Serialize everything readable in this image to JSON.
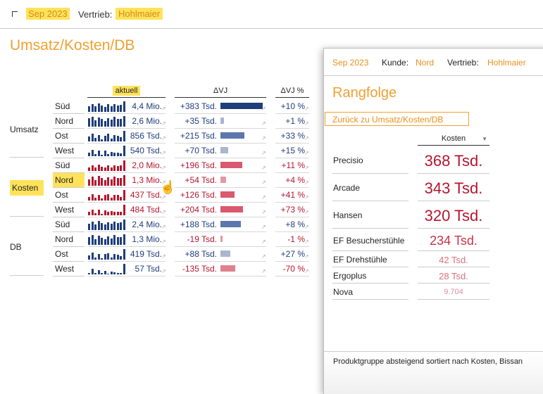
{
  "filters": {
    "date": "Sep 2023",
    "vertrieb_label": "Vertrieb:",
    "vertrieb_value": "Hohlmaier"
  },
  "main_title": "Umsatz/Kosten/DB",
  "columns": {
    "aktuell": "aktuell",
    "dvj": "ΔVJ",
    "dvj_pct": "ΔVJ %"
  },
  "colors": {
    "blue": "#1f3d7a",
    "red": "#b4162e",
    "blue_light": "#a9b6cf",
    "red_light": "#e19aa5",
    "highlight": "#ffe25a",
    "orange": "#f0a032"
  },
  "groups": [
    {
      "label": "Umsatz",
      "rows": [
        {
          "region": "Süd",
          "value": "4,4 Mio.",
          "delta": "+383 Tsd.",
          "delta_num": 383,
          "pct": "+10 %"
        },
        {
          "region": "Nord",
          "value": "2,6 Mio.",
          "delta": "+35 Tsd.",
          "delta_num": 35,
          "pct": "+1 %"
        },
        {
          "region": "Ost",
          "value": "856 Tsd.",
          "delta": "+215 Tsd.",
          "delta_num": 215,
          "pct": "+33 %"
        },
        {
          "region": "West",
          "value": "540 Tsd.",
          "delta": "+70 Tsd.",
          "delta_num": 70,
          "pct": "+15 %"
        }
      ]
    },
    {
      "label": "Kosten",
      "rows": [
        {
          "region": "Süd",
          "value": "2,0 Mio.",
          "delta": "+196 Tsd.",
          "delta_num": 196,
          "pct": "+11 %"
        },
        {
          "region": "Nord",
          "value": "1,3 Mio.",
          "delta": "+54 Tsd.",
          "delta_num": 54,
          "pct": "+4 %"
        },
        {
          "region": "Ost",
          "value": "437 Tsd.",
          "delta": "+126 Tsd.",
          "delta_num": 126,
          "pct": "+41 %"
        },
        {
          "region": "West",
          "value": "484 Tsd.",
          "delta": "+204 Tsd.",
          "delta_num": 204,
          "pct": "+73 %"
        }
      ]
    },
    {
      "label": "DB",
      "rows": [
        {
          "region": "Süd",
          "value": "2,4 Mio.",
          "delta": "+188 Tsd.",
          "delta_num": 188,
          "pct": "+8 %"
        },
        {
          "region": "Nord",
          "value": "1,3 Mio.",
          "delta": "-19 Tsd.",
          "delta_num": -19,
          "pct": "-1 %"
        },
        {
          "region": "Ost",
          "value": "419 Tsd.",
          "delta": "+88 Tsd.",
          "delta_num": 88,
          "pct": "+27 %"
        },
        {
          "region": "West",
          "value": "57 Tsd.",
          "delta": "-135 Tsd.",
          "delta_num": -135,
          "pct": "-70 %"
        }
      ]
    }
  ],
  "popup": {
    "date": "Sep 2023",
    "kunde_label": "Kunde:",
    "kunde_value": "Nord",
    "vertrieb_label": "Vertrieb:",
    "vertrieb_value": "Hohlmaier",
    "title": "Rangfolge",
    "back_button": "Zurück zu Umsatz/Kosten/DB",
    "column": "Kosten",
    "products": [
      {
        "name": "Precisio",
        "cost": "368 Tsd."
      },
      {
        "name": "Arcade",
        "cost": "343 Tsd."
      },
      {
        "name": "Hansen",
        "cost": "320 Tsd."
      },
      {
        "name": "EF Besucherstühle",
        "cost": "234 Tsd."
      },
      {
        "name": "EF Drehstühle",
        "cost": "42 Tsd."
      },
      {
        "name": "Ergoplus",
        "cost": "28 Tsd."
      },
      {
        "name": "Nova",
        "cost": "9.704"
      }
    ],
    "footer": "Produktgruppe absteigend sortiert nach Kosten, Bissan"
  }
}
